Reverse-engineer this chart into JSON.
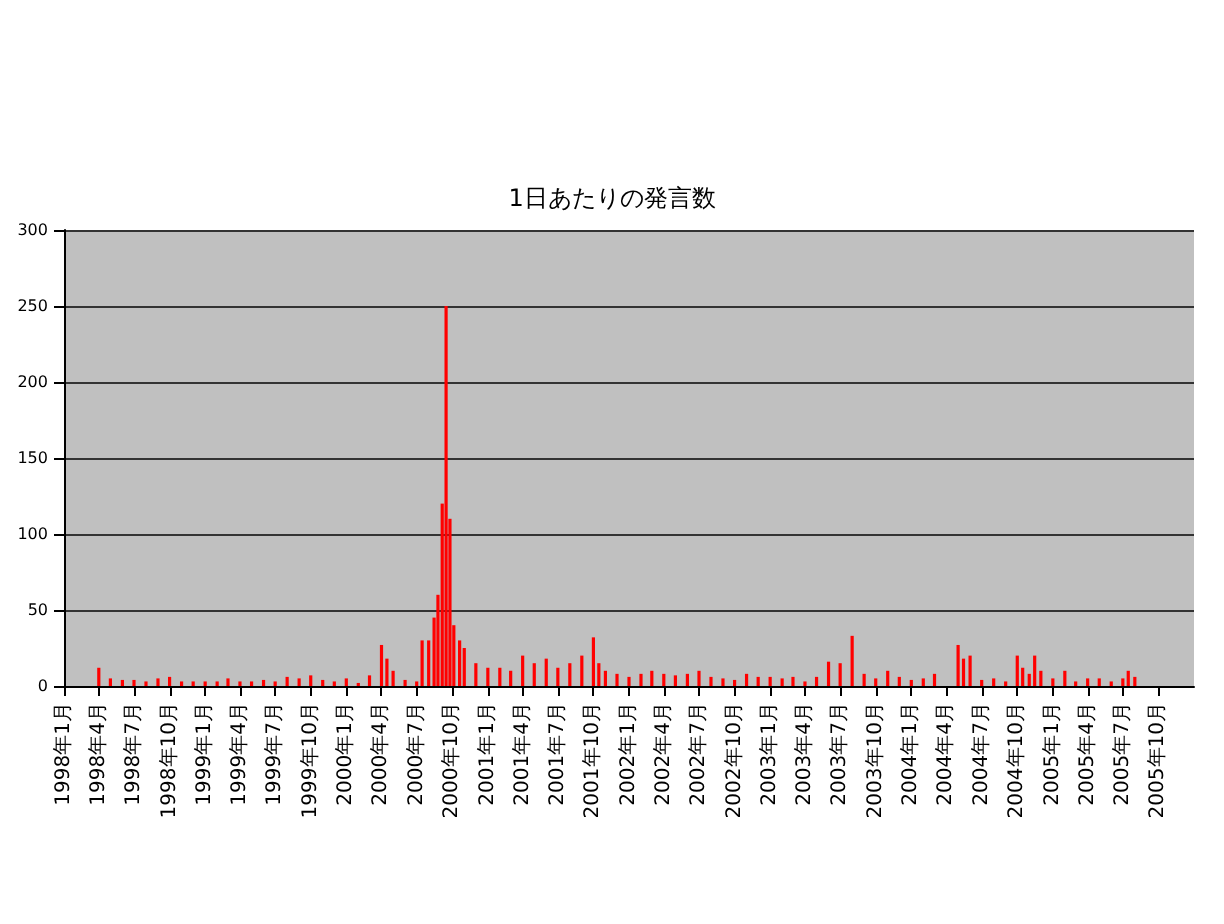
{
  "chart_data": {
    "type": "bar",
    "title": "1日あたりの発言数",
    "x": [
      "1998-04-01",
      "1998-05-01",
      "1998-06-01",
      "1998-07-01",
      "1998-08-01",
      "1998-09-01",
      "1998-10-01",
      "1998-11-01",
      "1998-12-01",
      "1999-01-01",
      "1999-02-01",
      "1999-03-01",
      "1999-04-01",
      "1999-05-01",
      "1999-06-01",
      "1999-07-01",
      "1999-08-01",
      "1999-09-01",
      "1999-10-01",
      "1999-11-01",
      "1999-12-01",
      "2000-01-01",
      "2000-02-01",
      "2000-03-01",
      "2000-04-01",
      "2000-04-15",
      "2000-05-01",
      "2000-06-01",
      "2000-07-01",
      "2000-07-15",
      "2000-08-01",
      "2000-08-15",
      "2000-08-25",
      "2000-09-05",
      "2000-09-15",
      "2000-09-25",
      "2000-10-05",
      "2000-10-20",
      "2000-11-01",
      "2000-12-01",
      "2001-01-01",
      "2001-02-01",
      "2001-03-01",
      "2001-04-01",
      "2001-05-01",
      "2001-06-01",
      "2001-07-01",
      "2001-08-01",
      "2001-09-01",
      "2001-10-01",
      "2001-10-15",
      "2001-11-01",
      "2001-12-01",
      "2002-01-01",
      "2002-02-01",
      "2002-03-01",
      "2002-04-01",
      "2002-05-01",
      "2002-06-01",
      "2002-07-01",
      "2002-08-01",
      "2002-09-01",
      "2002-10-01",
      "2002-11-01",
      "2002-12-01",
      "2003-01-01",
      "2003-02-01",
      "2003-03-01",
      "2003-04-01",
      "2003-05-01",
      "2003-06-01",
      "2003-07-01",
      "2003-08-01",
      "2003-09-01",
      "2003-10-01",
      "2003-11-01",
      "2003-12-01",
      "2004-01-01",
      "2004-02-01",
      "2004-03-01",
      "2004-05-01",
      "2004-05-15",
      "2004-06-01",
      "2004-07-01",
      "2004-08-01",
      "2004-09-01",
      "2004-10-01",
      "2004-10-15",
      "2004-11-01",
      "2004-11-15",
      "2004-12-01",
      "2005-01-01",
      "2005-02-01",
      "2005-03-01",
      "2005-04-01",
      "2005-05-01",
      "2005-06-01",
      "2005-07-01",
      "2005-07-15",
      "2005-08-01"
    ],
    "series": [
      {
        "color": "#ff0000",
        "values": [
          12,
          5,
          4,
          4,
          3,
          5,
          6,
          3,
          3,
          3,
          3,
          5,
          3,
          3,
          4,
          3,
          6,
          5,
          7,
          4,
          3,
          5,
          2,
          7,
          27,
          18,
          10,
          4,
          3,
          30,
          30,
          45,
          60,
          120,
          250,
          110,
          40,
          30,
          25,
          15,
          12,
          12,
          10,
          20,
          15,
          18,
          12,
          15,
          20,
          32,
          15,
          10,
          8,
          6,
          8,
          10,
          8,
          7,
          8,
          10,
          6,
          5,
          4,
          8,
          6,
          6,
          5,
          6,
          3,
          6,
          16,
          15,
          33,
          8,
          5,
          10,
          6,
          4,
          5,
          8,
          27,
          18,
          20,
          4,
          5,
          3,
          20,
          12,
          8,
          20,
          10,
          5,
          10,
          3,
          5,
          5,
          3,
          5,
          10,
          6
        ]
      }
    ],
    "xlim": [
      "1998-01-01",
      "2006-01-01"
    ],
    "xticks": [
      {
        "value": "1998-01-01",
        "label": "1998年1月"
      },
      {
        "value": "1998-04-01",
        "label": "1998年4月"
      },
      {
        "value": "1998-07-01",
        "label": "1998年7月"
      },
      {
        "value": "1998-10-01",
        "label": "1998年10月"
      },
      {
        "value": "1999-01-01",
        "label": "1999年1月"
      },
      {
        "value": "1999-04-01",
        "label": "1999年4月"
      },
      {
        "value": "1999-07-01",
        "label": "1999年7月"
      },
      {
        "value": "1999-10-01",
        "label": "1999年10月"
      },
      {
        "value": "2000-01-01",
        "label": "2000年1月"
      },
      {
        "value": "2000-04-01",
        "label": "2000年4月"
      },
      {
        "value": "2000-07-01",
        "label": "2000年7月"
      },
      {
        "value": "2000-10-01",
        "label": "2000年10月"
      },
      {
        "value": "2001-01-01",
        "label": "2001年1月"
      },
      {
        "value": "2001-04-01",
        "label": "2001年4月"
      },
      {
        "value": "2001-07-01",
        "label": "2001年7月"
      },
      {
        "value": "2001-10-01",
        "label": "2001年10月"
      },
      {
        "value": "2002-01-01",
        "label": "2002年1月"
      },
      {
        "value": "2002-04-01",
        "label": "2002年4月"
      },
      {
        "value": "2002-07-01",
        "label": "2002年7月"
      },
      {
        "value": "2002-10-01",
        "label": "2002年10月"
      },
      {
        "value": "2003-01-01",
        "label": "2003年1月"
      },
      {
        "value": "2003-04-01",
        "label": "2003年4月"
      },
      {
        "value": "2003-07-01",
        "label": "2003年7月"
      },
      {
        "value": "2003-10-01",
        "label": "2003年10月"
      },
      {
        "value": "2004-01-01",
        "label": "2004年1月"
      },
      {
        "value": "2004-04-01",
        "label": "2004年4月"
      },
      {
        "value": "2004-07-01",
        "label": "2004年7月"
      },
      {
        "value": "2004-10-01",
        "label": "2004年10月"
      },
      {
        "value": "2005-01-01",
        "label": "2005年1月"
      },
      {
        "value": "2005-04-01",
        "label": "2005年4月"
      },
      {
        "value": "2005-07-01",
        "label": "2005年7月"
      },
      {
        "value": "2005-10-01",
        "label": "2005年10月"
      }
    ],
    "ylim": [
      0,
      300
    ],
    "yticks": [
      0,
      50,
      100,
      150,
      200,
      250,
      300
    ],
    "grid": "y"
  }
}
